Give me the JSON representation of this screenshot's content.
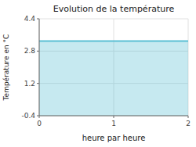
{
  "chart_data": {
    "type": "area",
    "title": "Evolution de la température",
    "xlabel": "heure par heure",
    "ylabel": "Température en °C",
    "x": [
      0,
      2
    ],
    "values": [
      3.3,
      3.3
    ],
    "color": "#5bbfd4",
    "xlim": [
      0,
      2
    ],
    "ylim": [
      -0.4,
      4.4
    ],
    "xticks": [
      0,
      1,
      2
    ],
    "yticks": [
      -0.4,
      1.2,
      2.8,
      4.4
    ],
    "grid": true
  }
}
